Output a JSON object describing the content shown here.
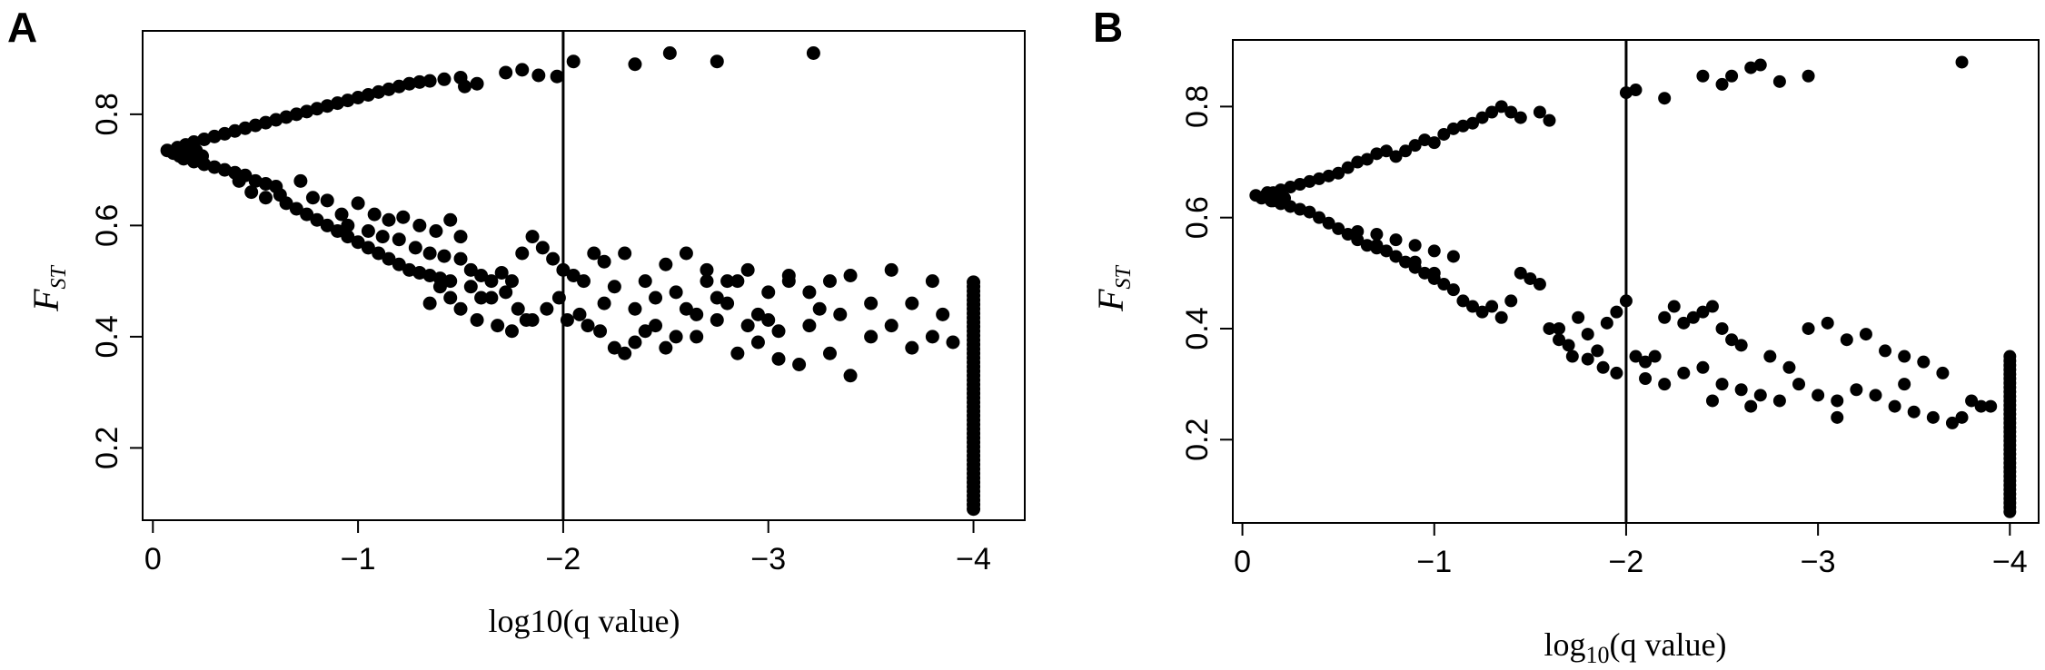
{
  "chart_data": [
    {
      "panel_label": "A",
      "type": "scatter",
      "xlabel": "log10(q value)",
      "ylabel": {
        "main": "F",
        "sub": "ST"
      },
      "xlim": [
        0.05,
        -4.25
      ],
      "ylim": [
        0.07,
        0.95
      ],
      "x_ticks": [
        0,
        -1,
        -2,
        -3,
        -4
      ],
      "x_tick_labels": [
        "0",
        "−1",
        "−2",
        "−3",
        "−4"
      ],
      "y_ticks": [
        0.2,
        0.4,
        0.6,
        0.8
      ],
      "y_tick_labels": [
        "0.2",
        "0.4",
        "0.6",
        "0.8"
      ],
      "vline": -2,
      "grid": false,
      "upper_branch": [
        [
          0.12,
          0.74
        ],
        [
          0.16,
          0.745
        ],
        [
          0.2,
          0.75
        ],
        [
          0.25,
          0.755
        ],
        [
          0.3,
          0.76
        ],
        [
          0.35,
          0.765
        ],
        [
          0.4,
          0.77
        ],
        [
          0.45,
          0.775
        ],
        [
          0.5,
          0.78
        ],
        [
          0.55,
          0.785
        ],
        [
          0.6,
          0.79
        ],
        [
          0.65,
          0.795
        ],
        [
          0.7,
          0.8
        ],
        [
          0.75,
          0.805
        ],
        [
          0.8,
          0.81
        ],
        [
          0.85,
          0.815
        ],
        [
          0.9,
          0.82
        ],
        [
          0.95,
          0.825
        ],
        [
          1.0,
          0.83
        ],
        [
          1.05,
          0.835
        ],
        [
          1.1,
          0.84
        ],
        [
          1.15,
          0.845
        ],
        [
          1.2,
          0.85
        ],
        [
          1.25,
          0.855
        ],
        [
          1.3,
          0.858
        ],
        [
          1.35,
          0.86
        ],
        [
          1.42,
          0.863
        ],
        [
          1.5,
          0.866
        ],
        [
          1.52,
          0.85
        ],
        [
          1.58,
          0.855
        ],
        [
          1.72,
          0.875
        ],
        [
          1.8,
          0.88
        ],
        [
          1.88,
          0.87
        ],
        [
          1.97,
          0.868
        ],
        [
          2.05,
          0.895
        ],
        [
          2.35,
          0.89
        ],
        [
          2.52,
          0.91
        ],
        [
          2.75,
          0.895
        ],
        [
          3.22,
          0.91
        ]
      ],
      "root_cluster": [
        [
          0.07,
          0.735
        ],
        [
          0.1,
          0.73
        ],
        [
          0.13,
          0.725
        ],
        [
          0.16,
          0.73
        ],
        [
          0.19,
          0.72
        ],
        [
          0.21,
          0.735
        ],
        [
          0.24,
          0.725
        ]
      ],
      "lower_branch": [
        [
          0.15,
          0.72
        ],
        [
          0.2,
          0.715
        ],
        [
          0.25,
          0.71
        ],
        [
          0.3,
          0.705
        ],
        [
          0.35,
          0.7
        ],
        [
          0.4,
          0.695
        ],
        [
          0.45,
          0.69
        ],
        [
          0.5,
          0.68
        ],
        [
          0.55,
          0.675
        ],
        [
          0.6,
          0.67
        ],
        [
          0.42,
          0.68
        ],
        [
          0.48,
          0.66
        ],
        [
          0.55,
          0.65
        ],
        [
          0.62,
          0.655
        ],
        [
          0.65,
          0.64
        ],
        [
          0.7,
          0.63
        ],
        [
          0.75,
          0.62
        ],
        [
          0.8,
          0.61
        ],
        [
          0.85,
          0.6
        ],
        [
          0.9,
          0.59
        ],
        [
          0.95,
          0.58
        ],
        [
          1.0,
          0.57
        ],
        [
          1.05,
          0.56
        ],
        [
          1.1,
          0.55
        ],
        [
          1.15,
          0.54
        ],
        [
          1.2,
          0.53
        ],
        [
          1.25,
          0.52
        ],
        [
          1.3,
          0.515
        ],
        [
          1.35,
          0.51
        ],
        [
          1.4,
          0.505
        ],
        [
          1.45,
          0.5
        ],
        [
          0.72,
          0.68
        ],
        [
          0.78,
          0.65
        ],
        [
          0.85,
          0.645
        ],
        [
          0.92,
          0.62
        ],
        [
          1.0,
          0.64
        ],
        [
          1.08,
          0.62
        ],
        [
          1.15,
          0.61
        ],
        [
          1.22,
          0.615
        ],
        [
          1.3,
          0.6
        ],
        [
          1.38,
          0.59
        ],
        [
          1.45,
          0.61
        ],
        [
          1.5,
          0.58
        ],
        [
          0.95,
          0.6
        ],
        [
          1.05,
          0.59
        ],
        [
          1.12,
          0.58
        ],
        [
          1.2,
          0.575
        ],
        [
          1.28,
          0.56
        ],
        [
          1.35,
          0.55
        ],
        [
          1.42,
          0.545
        ],
        [
          1.5,
          0.54
        ],
        [
          1.55,
          0.52
        ],
        [
          1.6,
          0.51
        ],
        [
          1.65,
          0.5
        ],
        [
          1.7,
          0.515
        ],
        [
          1.75,
          0.5
        ],
        [
          1.8,
          0.55
        ],
        [
          1.85,
          0.58
        ],
        [
          1.9,
          0.56
        ],
        [
          1.95,
          0.54
        ],
        [
          2.0,
          0.52
        ],
        [
          2.05,
          0.51
        ],
        [
          2.1,
          0.5
        ],
        [
          2.15,
          0.55
        ],
        [
          2.2,
          0.535
        ],
        [
          2.25,
          0.49
        ],
        [
          1.55,
          0.49
        ],
        [
          1.6,
          0.47
        ],
        [
          1.65,
          0.47
        ],
        [
          1.72,
          0.48
        ],
        [
          1.78,
          0.45
        ],
        [
          1.85,
          0.43
        ],
        [
          1.92,
          0.45
        ],
        [
          1.98,
          0.47
        ],
        [
          2.02,
          0.43
        ],
        [
          2.08,
          0.44
        ],
        [
          1.45,
          0.47
        ],
        [
          1.5,
          0.45
        ],
        [
          1.4,
          0.49
        ],
        [
          1.35,
          0.46
        ],
        [
          1.58,
          0.43
        ],
        [
          1.68,
          0.42
        ],
        [
          1.75,
          0.41
        ],
        [
          1.82,
          0.43
        ],
        [
          2.12,
          0.42
        ],
        [
          2.18,
          0.41
        ],
        [
          2.25,
          0.38
        ],
        [
          2.3,
          0.37
        ],
        [
          2.35,
          0.39
        ],
        [
          2.4,
          0.41
        ],
        [
          2.45,
          0.42
        ],
        [
          2.5,
          0.38
        ],
        [
          2.55,
          0.4
        ],
        [
          2.6,
          0.45
        ],
        [
          2.65,
          0.44
        ],
        [
          2.7,
          0.5
        ],
        [
          2.75,
          0.47
        ],
        [
          2.8,
          0.46
        ],
        [
          2.85,
          0.5
        ],
        [
          2.9,
          0.42
        ],
        [
          2.95,
          0.39
        ],
        [
          3.0,
          0.43
        ],
        [
          3.05,
          0.41
        ],
        [
          3.1,
          0.5
        ],
        [
          3.15,
          0.35
        ],
        [
          3.2,
          0.42
        ],
        [
          3.3,
          0.37
        ],
        [
          3.4,
          0.33
        ],
        [
          3.5,
          0.4
        ],
        [
          3.6,
          0.42
        ],
        [
          3.7,
          0.38
        ],
        [
          3.8,
          0.4
        ],
        [
          3.9,
          0.39
        ],
        [
          2.3,
          0.55
        ],
        [
          2.4,
          0.5
        ],
        [
          2.5,
          0.53
        ],
        [
          2.6,
          0.55
        ],
        [
          2.7,
          0.52
        ],
        [
          2.8,
          0.5
        ],
        [
          2.9,
          0.52
        ],
        [
          3.0,
          0.48
        ],
        [
          3.1,
          0.51
        ],
        [
          3.2,
          0.48
        ],
        [
          3.3,
          0.5
        ],
        [
          3.4,
          0.51
        ],
        [
          3.5,
          0.46
        ],
        [
          3.6,
          0.52
        ],
        [
          3.7,
          0.46
        ],
        [
          3.8,
          0.5
        ],
        [
          3.85,
          0.44
        ],
        [
          2.2,
          0.46
        ],
        [
          2.35,
          0.45
        ],
        [
          2.45,
          0.47
        ],
        [
          2.55,
          0.48
        ],
        [
          2.65,
          0.4
        ],
        [
          2.75,
          0.43
        ],
        [
          2.85,
          0.37
        ],
        [
          2.95,
          0.44
        ],
        [
          3.05,
          0.36
        ],
        [
          3.25,
          0.45
        ],
        [
          3.35,
          0.44
        ]
      ],
      "column_x": -4.0,
      "column_y_range": [
        0.09,
        0.5
      ]
    },
    {
      "panel_label": "B",
      "type": "scatter",
      "xlabel": {
        "pre": "log",
        "sub": "10",
        "post": "(q value)"
      },
      "ylabel": {
        "main": "F",
        "sub": "ST"
      },
      "xlim": [
        0.05,
        -4.15
      ],
      "ylim": [
        0.05,
        0.92
      ],
      "x_ticks": [
        0,
        -1,
        -2,
        -3,
        -4
      ],
      "x_tick_labels": [
        "0",
        "−1",
        "−2",
        "−3",
        "−4"
      ],
      "y_ticks": [
        0.2,
        0.4,
        0.6,
        0.8
      ],
      "y_tick_labels": [
        "0.2",
        "0.4",
        "0.6",
        "0.8"
      ],
      "vline": -2,
      "grid": false,
      "upper_branch": [
        [
          0.12,
          0.64
        ],
        [
          0.16,
          0.645
        ],
        [
          0.2,
          0.65
        ],
        [
          0.25,
          0.655
        ],
        [
          0.3,
          0.66
        ],
        [
          0.35,
          0.665
        ],
        [
          0.4,
          0.67
        ],
        [
          0.45,
          0.675
        ],
        [
          0.5,
          0.68
        ],
        [
          0.55,
          0.69
        ],
        [
          0.6,
          0.7
        ],
        [
          0.65,
          0.705
        ],
        [
          0.7,
          0.715
        ],
        [
          0.75,
          0.72
        ],
        [
          0.8,
          0.71
        ],
        [
          0.85,
          0.72
        ],
        [
          0.9,
          0.73
        ],
        [
          0.95,
          0.74
        ],
        [
          1.0,
          0.735
        ],
        [
          1.05,
          0.75
        ],
        [
          1.1,
          0.76
        ],
        [
          1.15,
          0.765
        ],
        [
          1.2,
          0.77
        ],
        [
          1.25,
          0.78
        ],
        [
          1.3,
          0.79
        ],
        [
          1.35,
          0.8
        ],
        [
          1.4,
          0.79
        ],
        [
          1.45,
          0.78
        ],
        [
          1.55,
          0.79
        ],
        [
          1.6,
          0.775
        ],
        [
          2.0,
          0.825
        ],
        [
          2.05,
          0.83
        ],
        [
          2.2,
          0.815
        ],
        [
          2.4,
          0.855
        ],
        [
          2.5,
          0.84
        ],
        [
          2.55,
          0.855
        ],
        [
          2.65,
          0.87
        ],
        [
          2.7,
          0.875
        ],
        [
          2.8,
          0.845
        ],
        [
          2.95,
          0.855
        ],
        [
          3.75,
          0.88
        ]
      ],
      "root_cluster": [
        [
          0.07,
          0.64
        ],
        [
          0.1,
          0.635
        ],
        [
          0.13,
          0.645
        ],
        [
          0.16,
          0.63
        ],
        [
          0.19,
          0.64
        ],
        [
          0.22,
          0.635
        ]
      ],
      "lower_branch": [
        [
          0.15,
          0.63
        ],
        [
          0.2,
          0.625
        ],
        [
          0.25,
          0.62
        ],
        [
          0.3,
          0.615
        ],
        [
          0.35,
          0.61
        ],
        [
          0.4,
          0.6
        ],
        [
          0.45,
          0.59
        ],
        [
          0.5,
          0.58
        ],
        [
          0.55,
          0.57
        ],
        [
          0.6,
          0.56
        ],
        [
          0.65,
          0.55
        ],
        [
          0.7,
          0.545
        ],
        [
          0.75,
          0.54
        ],
        [
          0.8,
          0.53
        ],
        [
          0.85,
          0.52
        ],
        [
          0.9,
          0.51
        ],
        [
          0.95,
          0.5
        ],
        [
          1.0,
          0.49
        ],
        [
          0.6,
          0.575
        ],
        [
          0.7,
          0.57
        ],
        [
          0.8,
          0.56
        ],
        [
          0.9,
          0.55
        ],
        [
          1.0,
          0.54
        ],
        [
          1.1,
          0.53
        ],
        [
          0.7,
          0.55
        ],
        [
          0.8,
          0.53
        ],
        [
          0.9,
          0.52
        ],
        [
          1.0,
          0.5
        ],
        [
          1.05,
          0.48
        ],
        [
          1.1,
          0.47
        ],
        [
          1.15,
          0.45
        ],
        [
          1.2,
          0.44
        ],
        [
          1.25,
          0.43
        ],
        [
          1.3,
          0.44
        ],
        [
          1.35,
          0.42
        ],
        [
          1.4,
          0.45
        ],
        [
          1.45,
          0.5
        ],
        [
          1.5,
          0.49
        ],
        [
          1.55,
          0.48
        ],
        [
          1.6,
          0.4
        ],
        [
          1.65,
          0.38
        ],
        [
          1.7,
          0.37
        ],
        [
          1.75,
          0.42
        ],
        [
          1.8,
          0.39
        ],
        [
          1.85,
          0.36
        ],
        [
          1.9,
          0.41
        ],
        [
          1.95,
          0.43
        ],
        [
          2.0,
          0.45
        ],
        [
          2.05,
          0.35
        ],
        [
          2.1,
          0.34
        ],
        [
          2.15,
          0.35
        ],
        [
          2.2,
          0.42
        ],
        [
          2.25,
          0.44
        ],
        [
          2.3,
          0.41
        ],
        [
          2.35,
          0.42
        ],
        [
          2.4,
          0.43
        ],
        [
          2.45,
          0.44
        ],
        [
          2.5,
          0.4
        ],
        [
          2.55,
          0.38
        ],
        [
          2.6,
          0.37
        ],
        [
          1.65,
          0.4
        ],
        [
          1.72,
          0.35
        ],
        [
          1.8,
          0.345
        ],
        [
          1.88,
          0.33
        ],
        [
          1.95,
          0.32
        ],
        [
          2.1,
          0.31
        ],
        [
          2.2,
          0.3
        ],
        [
          2.3,
          0.32
        ],
        [
          2.4,
          0.33
        ],
        [
          2.5,
          0.3
        ],
        [
          2.6,
          0.29
        ],
        [
          2.7,
          0.28
        ],
        [
          2.8,
          0.27
        ],
        [
          2.9,
          0.3
        ],
        [
          3.0,
          0.28
        ],
        [
          3.1,
          0.27
        ],
        [
          3.2,
          0.29
        ],
        [
          3.3,
          0.28
        ],
        [
          3.4,
          0.26
        ],
        [
          3.5,
          0.25
        ],
        [
          3.6,
          0.24
        ],
        [
          3.7,
          0.23
        ],
        [
          3.8,
          0.27
        ],
        [
          3.85,
          0.26
        ],
        [
          2.75,
          0.35
        ],
        [
          2.85,
          0.33
        ],
        [
          2.95,
          0.4
        ],
        [
          3.05,
          0.41
        ],
        [
          3.15,
          0.38
        ],
        [
          3.25,
          0.39
        ],
        [
          3.35,
          0.36
        ],
        [
          3.45,
          0.35
        ],
        [
          3.55,
          0.34
        ],
        [
          3.65,
          0.32
        ],
        [
          3.75,
          0.24
        ],
        [
          3.9,
          0.26
        ],
        [
          2.45,
          0.27
        ],
        [
          2.65,
          0.26
        ],
        [
          3.1,
          0.24
        ],
        [
          3.45,
          0.3
        ]
      ],
      "column_x": -4.0,
      "column_y_range": [
        0.07,
        0.35
      ]
    }
  ]
}
